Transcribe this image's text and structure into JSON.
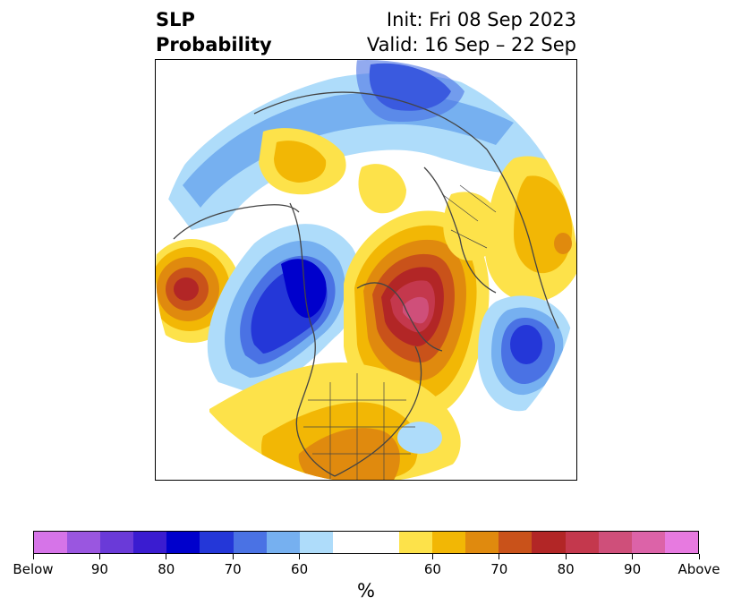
{
  "title": {
    "left_line1": "SLP",
    "left_line2": "Probability",
    "right_line1": "Init: Fri 08 Sep 2023",
    "right_line2": "Valid: 16 Sep – 22 Sep"
  },
  "colorbar": {
    "unit_label": "%",
    "colors": [
      "#d674e8",
      "#9a56e0",
      "#6a3ad8",
      "#3a1cd0",
      "#0000cc",
      "#2437d8",
      "#4a72e4",
      "#76b0f0",
      "#aedcfa",
      "#ffffff",
      "#ffffff",
      "#fde24a",
      "#f2b705",
      "#e08a0e",
      "#c9521a",
      "#b22626",
      "#c4384d",
      "#cf4f7a",
      "#dc63a8",
      "#e77ae0"
    ],
    "tick_labels": [
      "Below",
      "90",
      "80",
      "70",
      "60",
      "60",
      "70",
      "80",
      "90",
      "Above"
    ]
  }
}
